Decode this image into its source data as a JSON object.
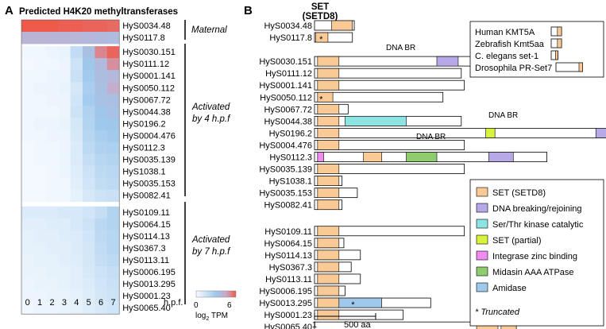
{
  "panel_a": {
    "label": "A",
    "title": "Predicted H4K20 methyltransferases",
    "xaxis_unit": "h.p.f.",
    "colorbar": {
      "label_base": "log",
      "label_sub": "2",
      "label_unit": " TPM",
      "min": "0",
      "max": "6"
    },
    "groups": [
      {
        "line1": "Maternal",
        "line2": ""
      },
      {
        "line1": "Activated",
        "line2": "by 4 h.p.f"
      },
      {
        "line1": "Activated",
        "line2": "by 7 h.p.f"
      }
    ]
  },
  "panel_b": {
    "label": "B",
    "set_header_line1": "SET",
    "set_header_line2": "(SETD8)",
    "scale_start": "1",
    "scale_end": "500 aa",
    "dna_br_label": "DNA BR",
    "truncated_note": "* Truncated",
    "reference_genes": [
      {
        "name": "Human KMT5A",
        "len": 0.93,
        "set": [
          0.56,
          0.93
        ]
      },
      {
        "name": "Zebrafish Kmt5aa",
        "len": 0.93,
        "set": [
          0.56,
          0.93
        ]
      },
      {
        "name": "C. elegans set-1",
        "len": 0.6,
        "set": [
          0.38,
          0.6
        ]
      },
      {
        "name": "Drosophila PR-Set7",
        "len": 2.4,
        "set": [
          2.07,
          2.4
        ]
      }
    ],
    "legend": [
      {
        "label": "SET (SETD8)",
        "color": "#f9c996"
      },
      {
        "label": "DNA breaking/rejoining",
        "color": "#b7a9e8"
      },
      {
        "label": "Ser/Thr kinase catalytic",
        "color": "#8ee3e3"
      },
      {
        "label": "SET (partial)",
        "color": "#d9f23e"
      },
      {
        "label": "Integrase zinc binding",
        "color": "#f08cf0"
      },
      {
        "label": "Midasin AAA ATPase",
        "color": "#8fcc6e"
      },
      {
        "label": "Amidase",
        "color": "#9ec8ec"
      }
    ]
  },
  "heatmap": {
    "timepoints": [
      "0",
      "1",
      "2",
      "3",
      "4",
      "5",
      "6",
      "7"
    ],
    "rows": [
      {
        "gene": "HyS0034.48",
        "values": [
          6.0,
          6.0,
          6.0,
          5.9,
          5.9,
          5.8,
          5.8,
          5.7
        ]
      },
      {
        "gene": "HyS0117.8",
        "values": [
          3.8,
          3.8,
          3.7,
          3.7,
          3.6,
          3.5,
          3.4,
          3.3
        ]
      },
      {
        "gene": "HyS0030.151",
        "values": [
          0.2,
          0.2,
          0.3,
          0.4,
          1.5,
          3.0,
          5.2,
          5.8
        ]
      },
      {
        "gene": "HyS0111.12",
        "values": [
          0.1,
          0.2,
          0.2,
          0.3,
          1.2,
          2.6,
          3.4,
          5.0
        ]
      },
      {
        "gene": "HyS0001.141",
        "values": [
          0.2,
          0.2,
          0.3,
          0.3,
          1.3,
          2.4,
          3.2,
          3.5
        ]
      },
      {
        "gene": "HyS0050.112",
        "values": [
          0.2,
          0.3,
          0.3,
          0.4,
          1.0,
          2.2,
          3.0,
          4.2
        ]
      },
      {
        "gene": "HyS0067.72",
        "values": [
          0.2,
          0.2,
          0.3,
          0.3,
          1.1,
          2.3,
          2.9,
          3.1
        ]
      },
      {
        "gene": "HyS0044.38",
        "values": [
          0.2,
          0.2,
          0.2,
          0.3,
          1.2,
          2.0,
          2.6,
          2.9
        ]
      },
      {
        "gene": "HyS0196.2",
        "values": [
          0.2,
          0.3,
          0.3,
          0.4,
          1.0,
          1.9,
          2.5,
          2.6
        ]
      },
      {
        "gene": "HyS0004.476",
        "values": [
          0.2,
          0.2,
          0.3,
          0.3,
          0.9,
          1.8,
          2.2,
          2.4
        ]
      },
      {
        "gene": "HyS0112.3",
        "values": [
          0.1,
          0.2,
          0.2,
          0.3,
          0.8,
          1.6,
          2.0,
          2.1
        ]
      },
      {
        "gene": "HyS0035.139",
        "values": [
          0.1,
          0.2,
          0.2,
          0.3,
          0.8,
          1.4,
          1.8,
          1.9
        ]
      },
      {
        "gene": "HyS1038.1",
        "values": [
          0.1,
          0.1,
          0.2,
          0.3,
          0.7,
          1.2,
          1.6,
          1.7
        ]
      },
      {
        "gene": "HyS0035.153",
        "values": [
          0.1,
          0.1,
          0.2,
          0.2,
          0.6,
          1.1,
          1.5,
          1.6
        ]
      },
      {
        "gene": "HyS0082.41",
        "values": [
          0.1,
          0.1,
          0.2,
          0.2,
          0.5,
          0.9,
          1.2,
          1.3
        ]
      },
      {
        "gene": "HyS0109.11",
        "values": [
          0.8,
          0.8,
          0.8,
          0.9,
          0.9,
          1.1,
          1.4,
          1.9
        ]
      },
      {
        "gene": "HyS0064.15",
        "values": [
          0.6,
          0.6,
          0.7,
          0.7,
          0.9,
          1.2,
          1.7,
          1.9
        ]
      },
      {
        "gene": "HyS0114.13",
        "values": [
          0.5,
          0.6,
          0.6,
          0.7,
          0.8,
          1.1,
          1.6,
          1.8
        ]
      },
      {
        "gene": "HyS0367.3",
        "values": [
          0.5,
          0.5,
          0.6,
          0.6,
          0.8,
          1.0,
          1.5,
          1.8
        ]
      },
      {
        "gene": "HyS0113.11",
        "values": [
          0.4,
          0.5,
          0.5,
          0.6,
          0.7,
          1.0,
          1.4,
          1.6
        ]
      },
      {
        "gene": "HyS0006.195",
        "values": [
          0.4,
          0.4,
          0.5,
          0.5,
          0.6,
          0.9,
          1.2,
          1.4
        ]
      },
      {
        "gene": "HyS0013.295",
        "values": [
          0.3,
          0.4,
          0.4,
          0.5,
          0.6,
          0.8,
          1.1,
          1.3
        ]
      },
      {
        "gene": "HyS0001.23",
        "values": [
          0.3,
          0.3,
          0.4,
          0.4,
          0.5,
          0.7,
          1.0,
          1.2
        ]
      },
      {
        "gene": "HyS0065.40",
        "values": [
          0.2,
          0.3,
          0.3,
          0.4,
          0.5,
          0.7,
          0.9,
          1.1
        ]
      }
    ]
  },
  "architectures": [
    {
      "gene": "HyS0034.48",
      "len": 0.65,
      "trunc": false,
      "domains": [
        {
          "type": 0,
          "s": 0.28,
          "e": 0.62
        }
      ]
    },
    {
      "gene": "HyS0117.8",
      "len": 0.62,
      "trunc": true,
      "domains": [
        {
          "type": 0,
          "s": 0.02,
          "e": 0.22
        }
      ]
    },
    {
      "gene": "HyS0030.151",
      "len": 2.8,
      "trunc": false,
      "domains": [
        {
          "type": 0,
          "s": 0.05,
          "e": 0.4
        },
        {
          "type": 1,
          "s": 2.0,
          "e": 2.35
        }
      ]
    },
    {
      "gene": "HyS0111.12",
      "len": 2.4,
      "trunc": false,
      "domains": [
        {
          "type": 0,
          "s": 0.05,
          "e": 0.4
        }
      ]
    },
    {
      "gene": "HyS0001.141",
      "len": 2.45,
      "trunc": false,
      "domains": [
        {
          "type": 0,
          "s": 0.05,
          "e": 0.4
        }
      ]
    },
    {
      "gene": "HyS0050.112",
      "len": 2.1,
      "trunc": true,
      "domains": [
        {
          "type": 0,
          "s": 0.05,
          "e": 0.3
        }
      ]
    },
    {
      "gene": "HyS0067.72",
      "len": 0.55,
      "trunc": false,
      "domains": [
        {
          "type": 0,
          "s": 0.05,
          "e": 0.4
        }
      ]
    },
    {
      "gene": "HyS0044.38",
      "len": 2.4,
      "trunc": false,
      "domains": [
        {
          "type": 0,
          "s": 0.05,
          "e": 0.4
        },
        {
          "type": 2,
          "s": 0.5,
          "e": 1.5
        }
      ]
    },
    {
      "gene": "HyS0196.2",
      "len": 5.6,
      "trunc": false,
      "domains": [
        {
          "type": 0,
          "s": 0.05,
          "e": 0.4
        },
        {
          "type": 3,
          "s": 2.8,
          "e": 2.95
        },
        {
          "type": 1,
          "s": 4.6,
          "e": 4.92
        }
      ]
    },
    {
      "gene": "HyS0004.476",
      "len": 2.45,
      "trunc": false,
      "domains": [
        {
          "type": 0,
          "s": 0.05,
          "e": 0.4
        }
      ]
    },
    {
      "gene": "HyS0112.3",
      "len": 3.8,
      "trunc": false,
      "domains": [
        {
          "type": 4,
          "s": 0.05,
          "e": 0.15
        },
        {
          "type": 0,
          "s": 0.8,
          "e": 1.1
        },
        {
          "type": 5,
          "s": 1.5,
          "e": 2.0
        },
        {
          "type": 1,
          "s": 2.85,
          "e": 3.25
        }
      ]
    },
    {
      "gene": "HyS0035.139",
      "len": 2.45,
      "trunc": false,
      "domains": [
        {
          "type": 0,
          "s": 0.05,
          "e": 0.4
        }
      ]
    },
    {
      "gene": "HyS1038.1",
      "len": 0.45,
      "trunc": false,
      "domains": [
        {
          "type": 0,
          "s": 0.05,
          "e": 0.4
        }
      ]
    },
    {
      "gene": "HyS0035.153",
      "len": 0.7,
      "trunc": false,
      "domains": [
        {
          "type": 0,
          "s": 0.05,
          "e": 0.4
        }
      ]
    },
    {
      "gene": "HyS0082.41",
      "len": 0.45,
      "trunc": false,
      "domains": [
        {
          "type": 0,
          "s": 0.05,
          "e": 0.4
        }
      ]
    },
    {
      "gene": "HyS0109.11",
      "len": 2.45,
      "trunc": false,
      "domains": [
        {
          "type": 0,
          "s": 0.05,
          "e": 0.4
        }
      ]
    },
    {
      "gene": "HyS0064.15",
      "len": 0.48,
      "trunc": false,
      "domains": [
        {
          "type": 0,
          "s": 0.05,
          "e": 0.4
        }
      ]
    },
    {
      "gene": "HyS0114.13",
      "len": 0.75,
      "trunc": false,
      "domains": [
        {
          "type": 0,
          "s": 0.05,
          "e": 0.4
        }
      ]
    },
    {
      "gene": "HyS0367.3",
      "len": 0.6,
      "trunc": false,
      "domains": [
        {
          "type": 0,
          "s": 0.05,
          "e": 0.4
        }
      ]
    },
    {
      "gene": "HyS0113.11",
      "len": 0.75,
      "trunc": false,
      "domains": [
        {
          "type": 0,
          "s": 0.05,
          "e": 0.4
        }
      ]
    },
    {
      "gene": "HyS0006.195",
      "len": 0.5,
      "trunc": false,
      "domains": [
        {
          "type": 0,
          "s": 0.05,
          "e": 0.4
        }
      ]
    },
    {
      "gene": "HyS0013.295",
      "len": 1.9,
      "trunc": true,
      "domains": [
        {
          "type": 0,
          "s": 0.05,
          "e": 0.4
        },
        {
          "type": 6,
          "s": 0.4,
          "e": 1.1
        }
      ]
    },
    {
      "gene": "HyS0001.23",
      "len": 1.45,
      "trunc": false,
      "domains": [
        {
          "type": 0,
          "s": 0.05,
          "e": 0.4
        }
      ]
    },
    {
      "gene": "HyS0065.40",
      "len": 3.3,
      "trunc": false,
      "domains": [
        {
          "type": 0,
          "s": 2.65,
          "e": 3.0
        },
        {
          "type": 0,
          "s": 3.05,
          "e": 3.3
        }
      ]
    }
  ]
}
